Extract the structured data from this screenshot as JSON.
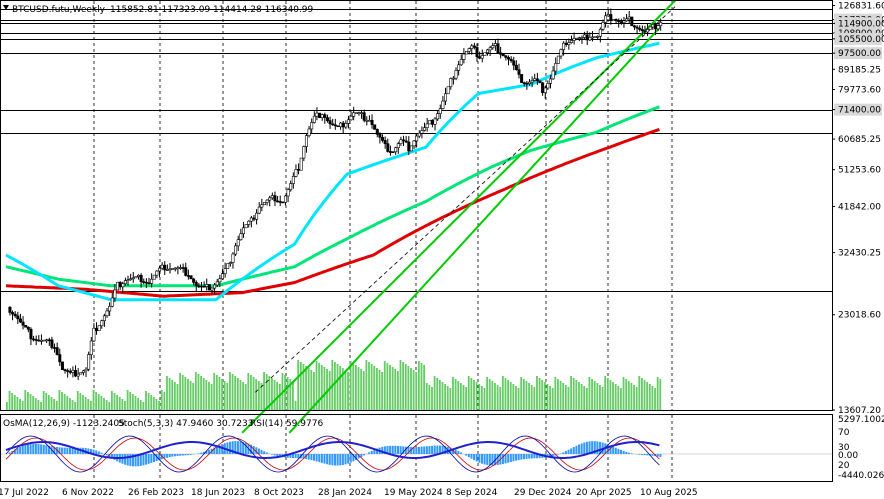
{
  "header": {
    "symbol": "BTCUSD.futu,Weekly",
    "ohlc": "115852.81 117323.09 114414.28 116340.99"
  },
  "indicator_header": {
    "osma": "OsMA(12,26,9) -1123.2405",
    "stoch": "Stoch(5,3,3) 47.9460 30.7233",
    "rsi": "RSI(14) 59.9776"
  },
  "colors": {
    "candle": "#000000",
    "ema_short": "#00e5ff",
    "ema_mid": "#00e676",
    "ema_long": "#e00000",
    "channel": "#00cc00",
    "volume": "#66cc66",
    "osma": "#3399ff",
    "stoch_main": "#0000aa",
    "stoch_signal": "#cc0000",
    "rsi": "#2020d0",
    "level_label_bg": "#d8d8d8"
  },
  "chart_data": {
    "type": "candlestick",
    "symbol": "BTCUSD.futu",
    "timeframe": "Weekly",
    "price_axis_ticks": [
      "126831.60",
      "117320.00",
      "114900.00",
      "108900.00",
      "105500.00",
      "97500.00",
      "89185.25",
      "79773.60",
      "71400.00",
      "60685.25",
      "51253.60",
      "41842.00",
      "32430.25",
      "23018.60",
      "13607.20"
    ],
    "x_axis_labels": [
      "17 Jul 2022",
      "6 Nov 2022",
      "26 Feb 2023",
      "18 Jun 2023",
      "8 Oct 2023",
      "28 Jan 2024",
      "19 May 2024",
      "8 Sep 2024",
      "29 Dec 2024",
      "20 Apr 2025",
      "10 Aug 2025"
    ],
    "horizontal_levels": [
      124500,
      117320,
      114900,
      108900,
      105500,
      97500,
      71400,
      62800,
      26300
    ],
    "price_range": [
      13607.2,
      130000
    ],
    "indicator_axis_ticks": [
      "5297.1002",
      "70",
      "30",
      "0.00",
      "20",
      "-4440.0263"
    ],
    "close_path": [
      [
        0,
        24000
      ],
      [
        3,
        23000
      ],
      [
        6,
        21500
      ],
      [
        9,
        20500
      ],
      [
        12,
        20000
      ],
      [
        15,
        19800
      ],
      [
        18,
        19500
      ],
      [
        21,
        17000
      ],
      [
        24,
        16500
      ],
      [
        27,
        16800
      ],
      [
        30,
        17000
      ],
      [
        33,
        21000
      ],
      [
        36,
        22500
      ],
      [
        39,
        24000
      ],
      [
        42,
        27000
      ],
      [
        45,
        28000
      ],
      [
        48,
        28000
      ],
      [
        51,
        28200
      ],
      [
        54,
        27500
      ],
      [
        57,
        29000
      ],
      [
        60,
        30000
      ],
      [
        63,
        29800
      ],
      [
        66,
        29500
      ],
      [
        69,
        29000
      ],
      [
        72,
        27000
      ],
      [
        75,
        26500
      ],
      [
        78,
        27000
      ],
      [
        81,
        28000
      ],
      [
        84,
        30000
      ],
      [
        87,
        34000
      ],
      [
        90,
        37000
      ],
      [
        93,
        38500
      ],
      [
        96,
        42000
      ],
      [
        99,
        43000
      ],
      [
        102,
        44000
      ],
      [
        105,
        43000
      ],
      [
        108,
        47000
      ],
      [
        111,
        52000
      ],
      [
        114,
        62000
      ],
      [
        117,
        68000
      ],
      [
        120,
        70500
      ],
      [
        123,
        66000
      ],
      [
        126,
        64000
      ],
      [
        129,
        67000
      ],
      [
        132,
        70000
      ],
      [
        135,
        69000
      ],
      [
        138,
        68000
      ],
      [
        141,
        62000
      ],
      [
        144,
        58000
      ],
      [
        147,
        57000
      ],
      [
        150,
        60000
      ],
      [
        153,
        58000
      ],
      [
        156,
        62000
      ],
      [
        159,
        64000
      ],
      [
        162,
        67000
      ],
      [
        165,
        72000
      ],
      [
        168,
        80000
      ],
      [
        171,
        90000
      ],
      [
        174,
        97000
      ],
      [
        177,
        100000
      ],
      [
        180,
        96000
      ],
      [
        183,
        99000
      ],
      [
        186,
        101000
      ],
      [
        189,
        97000
      ],
      [
        192,
        93000
      ],
      [
        195,
        85000
      ],
      [
        198,
        83000
      ],
      [
        201,
        84000
      ],
      [
        204,
        80000
      ],
      [
        207,
        85000
      ],
      [
        210,
        95000
      ],
      [
        213,
        104000
      ],
      [
        216,
        106000
      ],
      [
        219,
        105000
      ],
      [
        222,
        108000
      ],
      [
        225,
        107000
      ],
      [
        228,
        118000
      ],
      [
        231,
        119000
      ],
      [
        234,
        115000
      ],
      [
        237,
        117000
      ],
      [
        240,
        113000
      ],
      [
        243,
        109000
      ],
      [
        246,
        112000
      ],
      [
        249,
        116341
      ]
    ],
    "ema_short_path": [
      [
        0,
        32000
      ],
      [
        20,
        27000
      ],
      [
        40,
        25000
      ],
      [
        80,
        25000
      ],
      [
        110,
        34000
      ],
      [
        130,
        50000
      ],
      [
        160,
        58000
      ],
      [
        180,
        78000
      ],
      [
        200,
        82000
      ],
      [
        215,
        90000
      ],
      [
        225,
        95000
      ],
      [
        240,
        100000
      ],
      [
        249,
        103000
      ]
    ],
    "ema_mid_path": [
      [
        0,
        30000
      ],
      [
        20,
        28000
      ],
      [
        40,
        27000
      ],
      [
        80,
        27000
      ],
      [
        110,
        30000
      ],
      [
        130,
        35000
      ],
      [
        160,
        43000
      ],
      [
        185,
        52000
      ],
      [
        200,
        57000
      ],
      [
        225,
        63000
      ],
      [
        240,
        69000
      ],
      [
        249,
        72500
      ]
    ],
    "ema_long_path": [
      [
        0,
        27000
      ],
      [
        30,
        26500
      ],
      [
        60,
        25500
      ],
      [
        90,
        26000
      ],
      [
        110,
        27500
      ],
      [
        140,
        32000
      ],
      [
        165,
        39000
      ],
      [
        190,
        46000
      ],
      [
        210,
        52000
      ],
      [
        230,
        58000
      ],
      [
        249,
        64000
      ]
    ],
    "channel_upper": [
      [
        90,
        12000
      ],
      [
        260,
        140000
      ]
    ],
    "channel_lower": [
      [
        108,
        12000
      ],
      [
        249,
        112000
      ]
    ],
    "channel_mid_dashed": [
      [
        95,
        15000
      ],
      [
        255,
        126000
      ]
    ]
  }
}
